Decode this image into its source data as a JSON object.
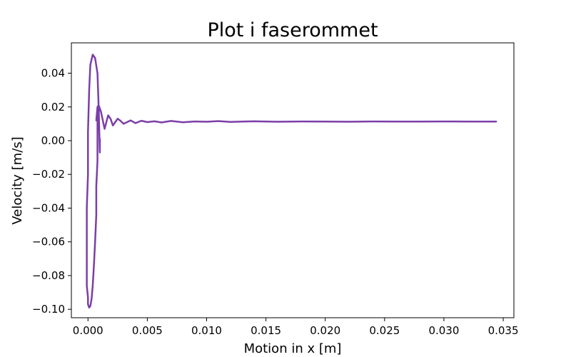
{
  "chart_data": {
    "type": "line",
    "title": "Plot i faserommet",
    "xlabel": "Motion in x [m]",
    "ylabel": "Velocity [m/s]",
    "xlim": [
      -0.0014,
      0.0359
    ],
    "ylim": [
      -0.105,
      0.058
    ],
    "xticks": [
      0.0,
      0.005,
      0.01,
      0.015,
      0.02,
      0.025,
      0.03,
      0.035
    ],
    "xtick_labels": [
      "0.000",
      "0.005",
      "0.010",
      "0.015",
      "0.020",
      "0.025",
      "0.030",
      "0.035"
    ],
    "yticks": [
      -0.1,
      -0.08,
      -0.06,
      -0.04,
      -0.02,
      0.0,
      0.02,
      0.04
    ],
    "ytick_labels": [
      "−0.10",
      "−0.08",
      "−0.06",
      "−0.04",
      "−0.02",
      "0.00",
      "0.02",
      "0.04"
    ],
    "grid": false,
    "line_color": "#7b3fa8",
    "series": [
      {
        "x": [
          0.001,
          0.001,
          0.0009,
          0.0008,
          0.0006,
          0.0004,
          0.0002,
          0.0001,
          0.0,
          0.0,
          -0.0001,
          -0.0001,
          -0.0001,
          -0.0001,
          0.0,
          0.0,
          0.0001,
          0.0002,
          0.0003,
          0.0004,
          0.0005,
          0.0006,
          0.0007,
          0.0007,
          0.0008,
          0.0008,
          0.0008,
          0.0008,
          0.0007,
          0.0008,
          0.0009,
          0.0011,
          0.0014,
          0.0017,
          0.0019,
          0.0021,
          0.0023,
          0.0025,
          0.0027,
          0.003,
          0.0033,
          0.0036,
          0.004,
          0.0045,
          0.005,
          0.0056,
          0.0062,
          0.007,
          0.008,
          0.009,
          0.01,
          0.011,
          0.012,
          0.013,
          0.014,
          0.016,
          0.018,
          0.02,
          0.022,
          0.024,
          0.026,
          0.028,
          0.03,
          0.032,
          0.0344
        ],
        "y": [
          0.001,
          -0.007,
          0.02,
          0.04,
          0.049,
          0.051,
          0.045,
          0.03,
          0.005,
          -0.02,
          -0.04,
          -0.06,
          -0.075,
          -0.086,
          -0.093,
          -0.097,
          -0.099,
          -0.098,
          -0.094,
          -0.086,
          -0.074,
          -0.06,
          -0.044,
          -0.027,
          -0.012,
          0.001,
          0.01,
          0.016,
          0.012,
          0.02,
          0.021,
          0.017,
          0.007,
          0.015,
          0.013,
          0.009,
          0.011,
          0.013,
          0.012,
          0.01,
          0.011,
          0.012,
          0.0104,
          0.0118,
          0.011,
          0.0115,
          0.0108,
          0.0117,
          0.0109,
          0.0114,
          0.0112,
          0.0116,
          0.0111,
          0.0113,
          0.0115,
          0.0112,
          0.0114,
          0.0113,
          0.0112,
          0.0114,
          0.0113,
          0.0113,
          0.0114,
          0.0113,
          0.0113
        ]
      }
    ]
  }
}
